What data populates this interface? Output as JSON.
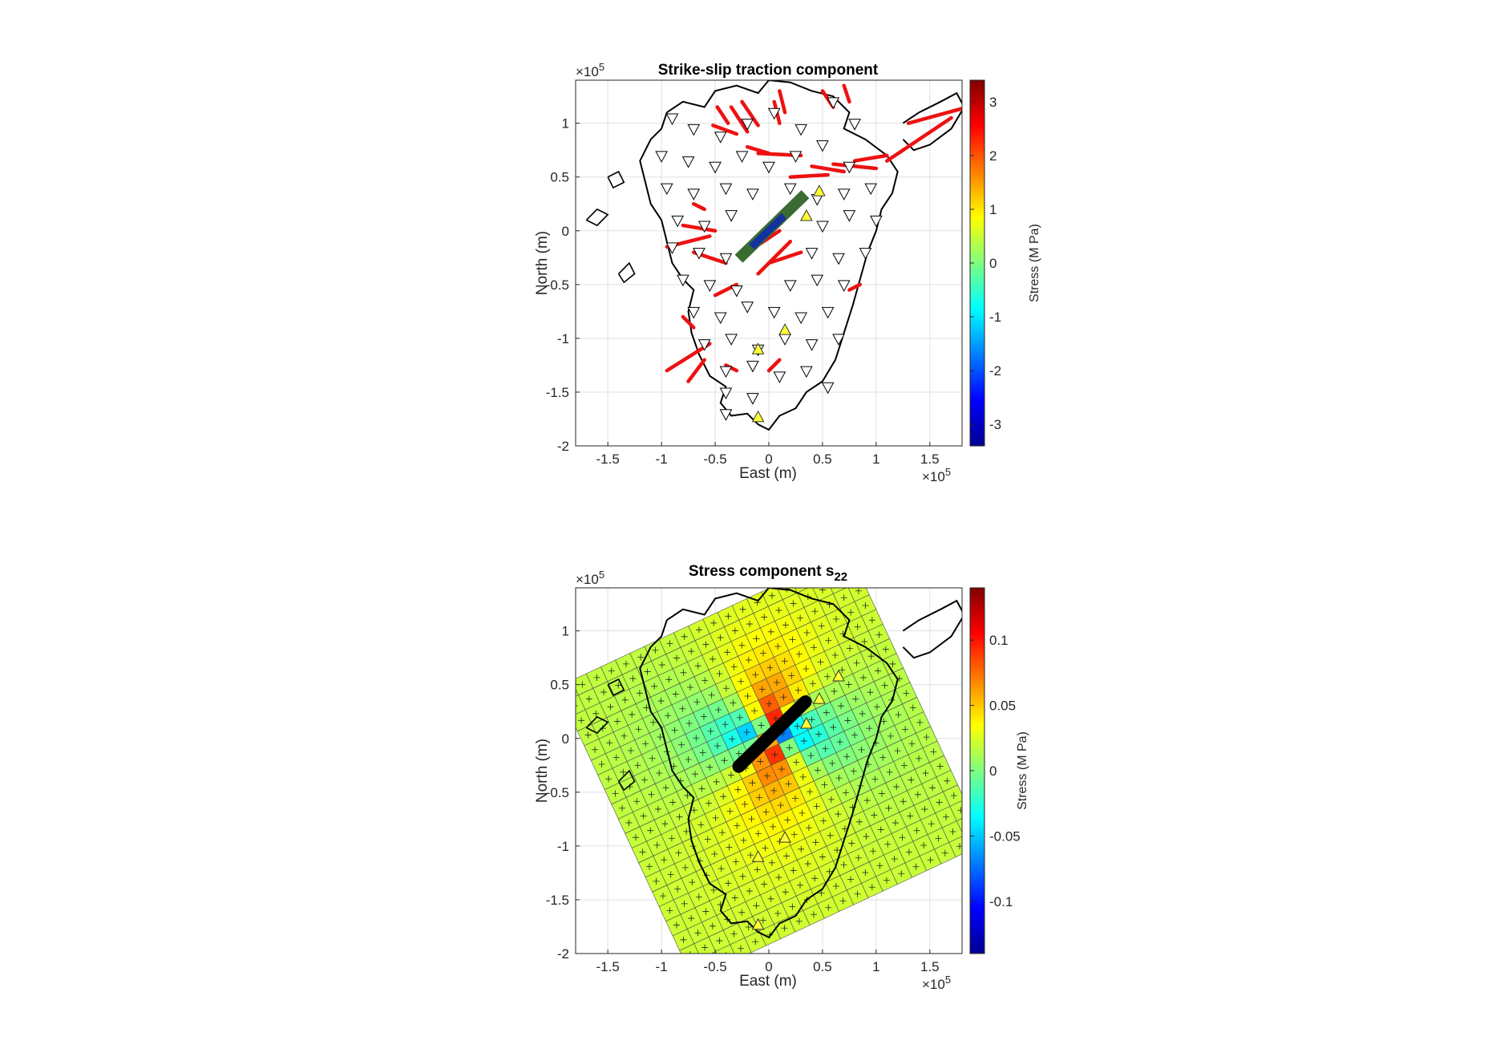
{
  "chart_data": [
    {
      "type": "map",
      "title": "Strike-slip traction component",
      "xlabel": "East (m)",
      "ylabel": "North (m)",
      "xlim": [
        -180000,
        180000
      ],
      "ylim": [
        -200000,
        140000
      ],
      "xticks": [
        -150000,
        -100000,
        -50000,
        0,
        50000,
        100000,
        150000
      ],
      "xtick_labels": [
        "-1.5",
        "-1",
        "-0.5",
        "0",
        "0.5",
        "1",
        "1.5"
      ],
      "yticks": [
        -200000,
        -150000,
        -100000,
        -50000,
        0,
        50000,
        100000
      ],
      "ytick_labels": [
        "-2",
        "-1.5",
        "-1",
        "-0.5",
        "0",
        "0.5",
        "1"
      ],
      "xexp_label": "×10",
      "xexp_power": "5",
      "yexp_label": "×10",
      "yexp_power": "5",
      "grid": true,
      "colorbar": {
        "label": "Stress (M Pa)",
        "lim": [
          -3.4,
          3.4
        ],
        "ticks": [
          -3,
          -2,
          -1,
          0,
          1,
          2,
          3
        ],
        "tick_labels": [
          "-3",
          "-2",
          "-1",
          "0",
          "1",
          "2",
          "3"
        ],
        "colormap": "jet"
      },
      "fault": {
        "x1": -28000,
        "y1": -26000,
        "x2": 34000,
        "y2": 34000
      },
      "stations_down": [
        [
          -90000,
          105000
        ],
        [
          -70000,
          95000
        ],
        [
          -45000,
          88000
        ],
        [
          -20000,
          100000
        ],
        [
          5000,
          110000
        ],
        [
          30000,
          95000
        ],
        [
          60000,
          120000
        ],
        [
          80000,
          100000
        ],
        [
          -100000,
          70000
        ],
        [
          -75000,
          65000
        ],
        [
          -50000,
          60000
        ],
        [
          -25000,
          70000
        ],
        [
          0,
          60000
        ],
        [
          25000,
          70000
        ],
        [
          50000,
          80000
        ],
        [
          75000,
          60000
        ],
        [
          -95000,
          40000
        ],
        [
          -70000,
          35000
        ],
        [
          -40000,
          40000
        ],
        [
          -15000,
          35000
        ],
        [
          20000,
          40000
        ],
        [
          45000,
          30000
        ],
        [
          70000,
          35000
        ],
        [
          95000,
          40000
        ],
        [
          -85000,
          10000
        ],
        [
          -60000,
          5000
        ],
        [
          -35000,
          15000
        ],
        [
          50000,
          5000
        ],
        [
          75000,
          15000
        ],
        [
          100000,
          10000
        ],
        [
          -90000,
          -15000
        ],
        [
          -65000,
          -20000
        ],
        [
          -40000,
          -25000
        ],
        [
          40000,
          -20000
        ],
        [
          65000,
          -25000
        ],
        [
          90000,
          -20000
        ],
        [
          -80000,
          -45000
        ],
        [
          -55000,
          -50000
        ],
        [
          -30000,
          -55000
        ],
        [
          20000,
          -50000
        ],
        [
          45000,
          -45000
        ],
        [
          70000,
          -50000
        ],
        [
          -70000,
          -75000
        ],
        [
          -45000,
          -80000
        ],
        [
          -20000,
          -70000
        ],
        [
          5000,
          -75000
        ],
        [
          30000,
          -80000
        ],
        [
          55000,
          -75000
        ],
        [
          -60000,
          -105000
        ],
        [
          -35000,
          -100000
        ],
        [
          -10000,
          -110000
        ],
        [
          15000,
          -100000
        ],
        [
          40000,
          -105000
        ],
        [
          65000,
          -100000
        ],
        [
          -40000,
          -130000
        ],
        [
          -15000,
          -125000
        ],
        [
          10000,
          -135000
        ],
        [
          35000,
          -130000
        ],
        [
          55000,
          -145000
        ],
        [
          -40000,
          -150000
        ],
        [
          -15000,
          -155000
        ],
        [
          -40000,
          -170000
        ]
      ],
      "stations_up": [
        [
          47000,
          37000
        ],
        [
          35000,
          14000
        ],
        [
          15000,
          -92000
        ],
        [
          -10000,
          -110000
        ],
        [
          -10000,
          -173000
        ]
      ],
      "traction_segments": [
        [
          -48000,
          115000,
          -38000,
          100000
        ],
        [
          -52000,
          98000,
          -30000,
          90000
        ],
        [
          -35000,
          115000,
          -20000,
          92000
        ],
        [
          -25000,
          120000,
          -10000,
          98000
        ],
        [
          10000,
          130000,
          15000,
          110000
        ],
        [
          5000,
          120000,
          10000,
          100000
        ],
        [
          50000,
          130000,
          60000,
          115000
        ],
        [
          70000,
          135000,
          75000,
          120000
        ],
        [
          -20000,
          78000,
          0,
          72000
        ],
        [
          -10000,
          72000,
          30000,
          70000
        ],
        [
          40000,
          60000,
          70000,
          55000
        ],
        [
          60000,
          62000,
          100000,
          58000
        ],
        [
          80000,
          65000,
          110000,
          70000
        ],
        [
          110000,
          65000,
          170000,
          105000
        ],
        [
          130000,
          100000,
          185000,
          115000
        ],
        [
          20000,
          50000,
          55000,
          52000
        ],
        [
          -70000,
          25000,
          -60000,
          20000
        ],
        [
          -80000,
          5000,
          -50000,
          0
        ],
        [
          -95000,
          -15000,
          -55000,
          -5000
        ],
        [
          -70000,
          -20000,
          -40000,
          -30000
        ],
        [
          -50000,
          -60000,
          -30000,
          -50000
        ],
        [
          -20000,
          -20000,
          10000,
          0
        ],
        [
          0,
          -30000,
          30000,
          -20000
        ],
        [
          -10000,
          -40000,
          20000,
          -10000
        ],
        [
          -80000,
          -80000,
          -70000,
          -90000
        ],
        [
          -95000,
          -130000,
          -55000,
          -105000
        ],
        [
          -75000,
          -140000,
          -60000,
          -120000
        ],
        [
          75000,
          -55000,
          85000,
          -50000
        ],
        [
          -40000,
          -125000,
          -30000,
          -130000
        ],
        [
          0,
          -130000,
          10000,
          -120000
        ]
      ]
    },
    {
      "type": "heatmap",
      "title": "Stress component s",
      "title_subscript": "22",
      "xlabel": "East (m)",
      "ylabel": "North (m)",
      "xlim": [
        -180000,
        180000
      ],
      "ylim": [
        -200000,
        140000
      ],
      "xticks": [
        -150000,
        -100000,
        -50000,
        0,
        50000,
        100000,
        150000
      ],
      "xtick_labels": [
        "-1.5",
        "-1",
        "-0.5",
        "0",
        "0.5",
        "1",
        "1.5"
      ],
      "yticks": [
        -200000,
        -150000,
        -100000,
        -50000,
        0,
        50000,
        100000
      ],
      "ytick_labels": [
        "-2",
        "-1.5",
        "-1",
        "-0.5",
        "0",
        "0.5",
        "1"
      ],
      "xexp_label": "×10",
      "xexp_power": "5",
      "yexp_label": "×10",
      "yexp_power": "5",
      "grid": true,
      "colorbar": {
        "label": "Stress (M Pa)",
        "lim": [
          -0.14,
          0.14
        ],
        "ticks": [
          -0.1,
          -0.05,
          0,
          0.05,
          0.1
        ],
        "tick_labels": [
          "-0.1",
          "-0.05",
          "0",
          "0.05",
          "0.1"
        ],
        "colormap": "jet"
      },
      "grid_center": [
        2000,
        -25000
      ],
      "grid_rotation_deg": 25,
      "grid_cells": [
        20,
        20
      ],
      "cell_size": 15000,
      "fault": {
        "x1": -28000,
        "y1": -26000,
        "x2": 34000,
        "y2": 34000
      },
      "stations_up": [
        [
          65000,
          58000
        ],
        [
          47000,
          37000
        ],
        [
          35000,
          14000
        ],
        [
          15000,
          -92000
        ],
        [
          -10000,
          -110000
        ],
        [
          -10000,
          -173000
        ]
      ]
    }
  ]
}
